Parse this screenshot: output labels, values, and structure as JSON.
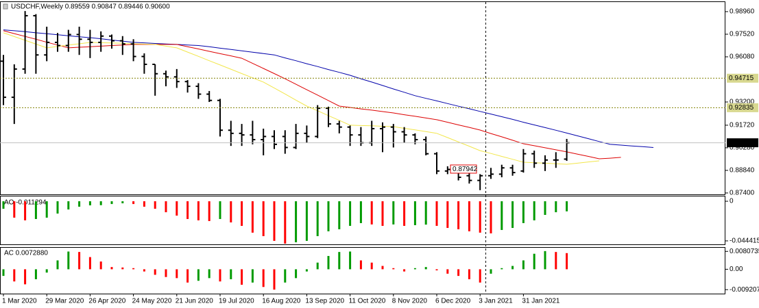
{
  "chart_data": [
    {
      "type": "ohlc",
      "title": "USDCHF,Weekly 0.89559 0.90847 0.89446 0.90600",
      "categories": [
        "1 Mar 2020",
        null,
        null,
        null,
        "29 Mar 2020",
        null,
        null,
        null,
        "26 Apr 2020",
        null,
        null,
        null,
        "24 May 2020",
        null,
        null,
        null,
        "21 Jun 2020",
        null,
        null,
        null,
        "19 Jul 2020",
        null,
        null,
        null,
        "16 Aug 2020",
        null,
        null,
        null,
        "13 Sep 2020",
        null,
        null,
        null,
        "11 Oct 2020",
        null,
        null,
        null,
        "8 Nov 2020",
        null,
        null,
        null,
        "6 Dec 2020",
        null,
        null,
        null,
        "3 Jan 2021",
        null,
        null,
        null,
        "31 Jan 2021",
        null,
        null,
        null,
        null,
        null,
        null,
        null,
        null,
        null,
        null,
        null,
        null
      ],
      "open": [
        0.958,
        0.935,
        0.953,
        0.987,
        0.962,
        0.97,
        0.968,
        0.975,
        0.972,
        0.97,
        0.974,
        0.971,
        0.969,
        0.961,
        0.956,
        0.95,
        0.948,
        0.945,
        0.942,
        0.937,
        0.933,
        0.914,
        0.912,
        0.911,
        0.908,
        0.91,
        0.91,
        0.903,
        0.912,
        0.91,
        0.928,
        0.918,
        0.916,
        0.911,
        0.906,
        0.915,
        0.916,
        0.913,
        0.911,
        0.908,
        0.899,
        0.888,
        0.889,
        0.885,
        0.882,
        0.885,
        0.886,
        0.89,
        0.888,
        0.899,
        0.893,
        0.895,
        0.89559,
        null,
        null,
        null,
        null,
        null,
        null,
        null,
        null
      ],
      "high": [
        0.962,
        0.956,
        0.99,
        0.988,
        0.98,
        0.976,
        0.978,
        0.98,
        0.978,
        0.977,
        0.975,
        0.974,
        0.972,
        0.963,
        0.956,
        0.952,
        0.953,
        0.946,
        0.944,
        0.939,
        0.934,
        0.92,
        0.918,
        0.92,
        0.915,
        0.914,
        0.914,
        0.918,
        0.917,
        0.93,
        0.929,
        0.92,
        0.917,
        0.916,
        0.92,
        0.919,
        0.918,
        0.916,
        0.912,
        0.91,
        0.9,
        0.891,
        0.89,
        0.887,
        0.886,
        0.89,
        0.892,
        0.892,
        0.902,
        0.901,
        0.898,
        0.9,
        0.90847,
        null,
        null,
        null,
        null,
        null,
        null,
        null,
        null
      ],
      "low": [
        0.93,
        0.918,
        0.95,
        0.95,
        0.958,
        0.964,
        0.964,
        0.962,
        0.96,
        0.964,
        0.966,
        0.962,
        0.958,
        0.95,
        0.936,
        0.942,
        0.941,
        0.938,
        0.934,
        0.932,
        0.91,
        0.904,
        0.904,
        0.905,
        0.898,
        0.902,
        0.899,
        0.902,
        0.906,
        0.909,
        0.916,
        0.912,
        0.904,
        0.904,
        0.904,
        0.9,
        0.903,
        0.906,
        0.905,
        0.898,
        0.886,
        0.886,
        0.882,
        0.88,
        0.8758,
        0.883,
        0.884,
        0.885,
        0.887,
        0.89,
        0.888,
        0.89,
        0.89446,
        null,
        null,
        null,
        null,
        null,
        null,
        null,
        null
      ],
      "close": [
        0.935,
        0.953,
        0.987,
        0.962,
        0.97,
        0.968,
        0.975,
        0.972,
        0.97,
        0.974,
        0.971,
        0.969,
        0.961,
        0.956,
        0.95,
        0.948,
        0.945,
        0.942,
        0.937,
        0.933,
        0.914,
        0.912,
        0.911,
        0.908,
        0.91,
        0.905,
        0.903,
        0.912,
        0.91,
        0.928,
        0.918,
        0.916,
        0.911,
        0.906,
        0.915,
        0.916,
        0.913,
        0.911,
        0.908,
        0.899,
        0.888,
        0.889,
        0.884,
        0.882,
        0.885,
        0.886,
        0.89,
        0.887,
        0.899,
        0.893,
        0.895,
        0.895,
        0.906,
        null,
        null,
        null,
        null,
        null,
        null,
        null,
        null
      ],
      "color": "#000000",
      "lines": [
        {
          "color": "#0000aa",
          "values": [
            0.978,
            0.9774,
            0.9768,
            0.9761,
            0.9755,
            0.9749,
            0.9742,
            0.9736,
            0.973,
            0.9723,
            0.9715,
            0.9708,
            0.97,
            0.9697,
            0.9693,
            0.969,
            0.9687,
            0.9683,
            0.968,
            0.9672,
            0.9663,
            0.9655,
            0.9646,
            0.9637,
            0.9629,
            0.962,
            0.9601,
            0.9583,
            0.9564,
            0.9546,
            0.9527,
            0.9509,
            0.949,
            0.9468,
            0.9447,
            0.9425,
            0.9403,
            0.9382,
            0.936,
            0.9343,
            0.9327,
            0.931,
            0.9293,
            0.9277,
            0.926,
            0.9243,
            0.9226,
            0.9209,
            0.9191,
            0.9174,
            0.9157,
            0.914,
            0.9122,
            0.9104,
            0.9086,
            0.9068,
            0.905,
            0.9045,
            0.904,
            0.9035,
            0.903
          ]
        },
        {
          "color": "#dd0000",
          "values": [
            0.9774,
            0.9756,
            0.9738,
            0.972,
            0.9701,
            0.9683,
            0.9665,
            0.9669,
            0.9672,
            0.9676,
            0.968,
            0.9683,
            0.9687,
            0.9687,
            0.9687,
            0.9687,
            0.9687,
            0.9672,
            0.9658,
            0.9643,
            0.9628,
            0.9614,
            0.9599,
            0.9566,
            0.9534,
            0.9501,
            0.9468,
            0.9433,
            0.9398,
            0.9364,
            0.9329,
            0.9294,
            0.9285,
            0.9276,
            0.9268,
            0.9259,
            0.925,
            0.9239,
            0.9229,
            0.9218,
            0.9207,
            0.9191,
            0.9174,
            0.9158,
            0.9141,
            0.9119,
            0.9098,
            0.9076,
            0.9054,
            0.9041,
            0.9028,
            0.9015,
            0.9002,
            0.8987,
            0.8973,
            0.8958,
            0.8962,
            0.8967,
            null,
            null,
            null
          ]
        },
        {
          "color": "#f2e64a",
          "values": [
            0.9761,
            0.9737,
            0.9713,
            0.9689,
            0.9665,
            0.9674,
            0.9683,
            0.9691,
            0.97,
            0.9698,
            0.9696,
            0.9694,
            0.9691,
            0.9689,
            0.9687,
            0.9676,
            0.9665,
            0.9638,
            0.9611,
            0.9583,
            0.9556,
            0.9529,
            0.9501,
            0.9474,
            0.9447,
            0.9409,
            0.9371,
            0.9332,
            0.9294,
            0.9264,
            0.9233,
            0.9203,
            0.9172,
            0.917,
            0.9168,
            0.9165,
            0.9163,
            0.9152,
            0.9142,
            0.9131,
            0.912,
            0.9093,
            0.9065,
            0.9038,
            0.901,
            0.8992,
            0.8973,
            0.8955,
            0.8936,
            0.8933,
            0.893,
            0.8926,
            0.8923,
            0.893,
            0.8938,
            0.8945,
            null,
            null,
            null,
            null,
            null
          ]
        }
      ],
      "ylim": [
        0.8731,
        0.9957
      ],
      "yticks": [
        {
          "value": 0.9896,
          "label": "0.98960"
        },
        {
          "value": 0.9752,
          "label": "0.97520"
        },
        {
          "value": 0.9608,
          "label": "0.96080"
        },
        {
          "value": 0.932,
          "label": "0.93200"
        },
        {
          "value": 0.9172,
          "label": "0.91720"
        },
        {
          "value": 0.9028,
          "label": "0.90280"
        },
        {
          "value": 0.8884,
          "label": "0.88840"
        },
        {
          "value": 0.874,
          "label": "0.87400"
        }
      ],
      "levels": [
        {
          "value": 0.94715,
          "color": "#808000",
          "label_bg": "#d8d890",
          "label_color": "#000000"
        },
        {
          "value": 0.92835,
          "color": "#808000",
          "label_bg": "#d8d890",
          "label_color": "#000000"
        },
        {
          "value": 0.906,
          "label": "0.90600",
          "color": "#c0c0c0",
          "label_bg": "#000000",
          "label_color": "#ffffff"
        }
      ],
      "annotations": [
        {
          "text": "0.87942",
          "color": "#e00000"
        }
      ]
    },
    {
      "type": "bar",
      "label": "AO -0.011294",
      "values": [
        -0.0084,
        -0.0184,
        -0.0214,
        -0.0199,
        -0.0184,
        -0.0138,
        -0.0092,
        -0.0061,
        -0.0046,
        -0.0044,
        -0.0031,
        -0.0023,
        -0.0031,
        -0.0061,
        -0.0084,
        -0.0123,
        -0.0161,
        -0.0199,
        -0.0214,
        -0.0222,
        -0.0199,
        -0.0237,
        -0.0276,
        -0.0352,
        -0.0391,
        -0.0444,
        -0.0475,
        -0.046,
        -0.0444,
        -0.0391,
        -0.0337,
        -0.0314,
        -0.0276,
        -0.0245,
        -0.026,
        -0.0276,
        -0.026,
        -0.0276,
        -0.0268,
        -0.0262,
        -0.0276,
        -0.0299,
        -0.0314,
        -0.0337,
        -0.0352,
        -0.036,
        -0.0322,
        -0.0299,
        -0.0245,
        -0.0214,
        -0.0153,
        -0.0123,
        -0.0113
      ],
      "up_color": "#009a00",
      "down_color": "#ff0000",
      "ylim": [
        -0.0483,
        0.0054
      ],
      "yticks": [
        0,
        -0.044415
      ]
    },
    {
      "type": "bar",
      "label": "AC 0.0072880",
      "values": [
        -0.003,
        -0.0055,
        -0.0068,
        -0.0045,
        -0.0015,
        0.004,
        0.008,
        0.0078,
        0.0055,
        0.0035,
        0.001,
        0.0008,
        0.0005,
        -0.001,
        -0.0025,
        -0.0035,
        -0.004,
        -0.006,
        -0.0052,
        -0.004,
        -0.0055,
        -0.0045,
        -0.007,
        -0.006,
        -0.008,
        -0.0092,
        -0.006,
        -0.004,
        -0.001,
        0.003,
        0.006,
        0.0078,
        0.008,
        0.004,
        0.003,
        0.0015,
        0.0005,
        -0.001,
        0.0005,
        0.001,
        -0.0005,
        -0.002,
        -0.003,
        -0.0045,
        -0.006,
        -0.002,
        0.0005,
        0.0015,
        0.004,
        0.007,
        0.0082,
        0.0078,
        0.007288
      ],
      "up_color": "#009a00",
      "down_color": "#ff0000",
      "ylim": [
        -0.011,
        0.0097
      ],
      "yticks": [
        0.0080735,
        {
          "value": 0,
          "label": "0.00"
        },
        -0.0092074
      ]
    }
  ]
}
